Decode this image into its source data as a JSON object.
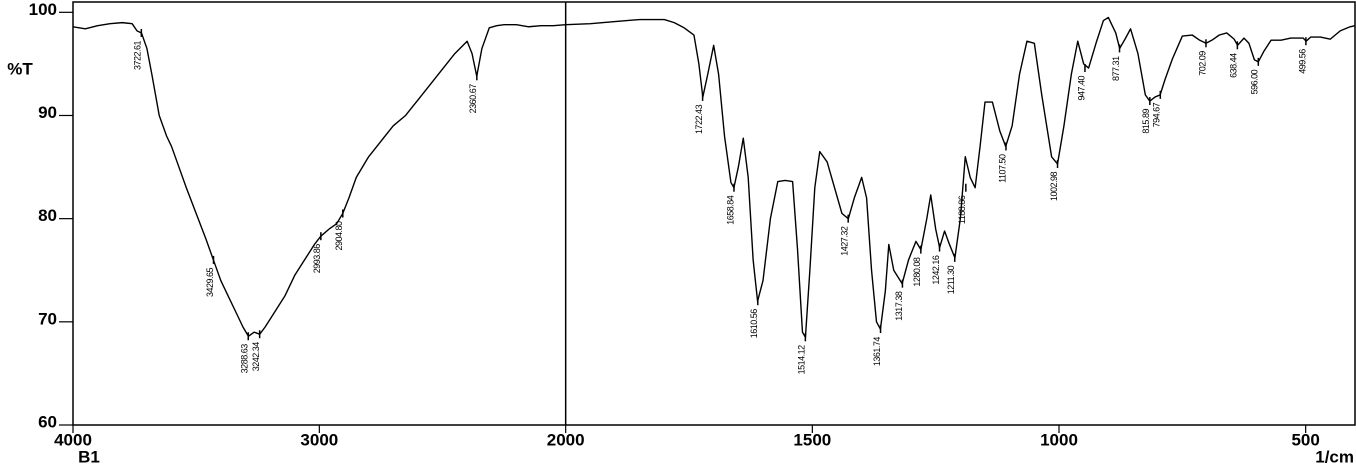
{
  "chart_data": {
    "type": "line",
    "ylabel": "%T",
    "xlabel": "1/cm",
    "sample_label": "B1",
    "color": "#000000",
    "xlim": [
      4000,
      400
    ],
    "x_scale_change": 2000,
    "ylim": [
      60,
      101
    ],
    "xticks": [
      4000,
      3000,
      2000,
      1500,
      1000,
      500
    ],
    "yticks": [
      60,
      70,
      80,
      90,
      100
    ],
    "x": [
      4000,
      3950,
      3900,
      3850,
      3800,
      3760,
      3740,
      3722,
      3700,
      3680,
      3650,
      3620,
      3600,
      3570,
      3540,
      3500,
      3460,
      3430,
      3400,
      3370,
      3340,
      3310,
      3288,
      3265,
      3242,
      3220,
      3180,
      3140,
      3100,
      3060,
      3020,
      2994,
      2960,
      2930,
      2905,
      2880,
      2850,
      2800,
      2750,
      2700,
      2650,
      2600,
      2550,
      2500,
      2450,
      2400,
      2380,
      2361,
      2340,
      2310,
      2280,
      2250,
      2200,
      2150,
      2100,
      2050,
      2000,
      1950,
      1900,
      1850,
      1800,
      1780,
      1760,
      1740,
      1730,
      1722,
      1712,
      1700,
      1690,
      1678,
      1665,
      1659,
      1650,
      1640,
      1630,
      1620,
      1611,
      1600,
      1585,
      1570,
      1555,
      1540,
      1530,
      1520,
      1514,
      1505,
      1495,
      1485,
      1470,
      1455,
      1440,
      1427,
      1415,
      1400,
      1390,
      1380,
      1370,
      1362,
      1352,
      1345,
      1335,
      1318,
      1305,
      1290,
      1280,
      1268,
      1260,
      1250,
      1242,
      1232,
      1222,
      1211,
      1200,
      1190,
      1180,
      1170,
      1160,
      1150,
      1135,
      1120,
      1108,
      1095,
      1080,
      1065,
      1050,
      1035,
      1015,
      1003,
      990,
      975,
      962,
      950,
      940,
      925,
      910,
      900,
      885,
      877,
      865,
      855,
      840,
      825,
      816,
      805,
      795,
      785,
      770,
      750,
      730,
      715,
      702,
      690,
      675,
      660,
      645,
      638,
      625,
      615,
      604,
      596,
      585,
      570,
      550,
      530,
      505,
      499,
      490,
      470,
      450,
      430,
      410,
      400
    ],
    "values": [
      98.6,
      98.4,
      98.7,
      98.9,
      99.0,
      98.9,
      98.2,
      98.0,
      96.5,
      94,
      90,
      88,
      87,
      85,
      83,
      80.5,
      78,
      76,
      74,
      72.5,
      71,
      69.5,
      68.6,
      69,
      68.8,
      69.5,
      71,
      72.5,
      74.5,
      76,
      77.5,
      78.3,
      79,
      79.5,
      80.5,
      82,
      84,
      86,
      87.5,
      89,
      90,
      91.5,
      93,
      94.5,
      96,
      97.2,
      96,
      93.8,
      96.5,
      98.5,
      98.7,
      98.8,
      98.8,
      98.6,
      98.7,
      98.7,
      98.8,
      98.9,
      99.1,
      99.3,
      99.3,
      99.0,
      98.5,
      97.8,
      95,
      91.8,
      94,
      96.8,
      94,
      88,
      83.5,
      83,
      85,
      87.8,
      84,
      76,
      72,
      74,
      80,
      83.6,
      83.7,
      83.6,
      77,
      69,
      68.5,
      75,
      83,
      86.5,
      85.5,
      83,
      80.5,
      80,
      82,
      84,
      82,
      75,
      70,
      69.3,
      73,
      77.5,
      75,
      73.7,
      76,
      77.8,
      77,
      80,
      82.3,
      79,
      77.2,
      78.8,
      77.5,
      76.2,
      80,
      86,
      84,
      83,
      87,
      91.3,
      91.3,
      88.5,
      87,
      89,
      94,
      97.2,
      97,
      92,
      86,
      85.3,
      89,
      94,
      97.2,
      95,
      94.6,
      97,
      99.2,
      99.5,
      98,
      96.5,
      97.5,
      98.4,
      96,
      92,
      91.4,
      91.8,
      92,
      93.5,
      95.5,
      97.7,
      97.8,
      97.3,
      97,
      97.3,
      97.8,
      98,
      97.4,
      96.8,
      97.5,
      97,
      95.4,
      95.2,
      96.2,
      97.3,
      97.3,
      97.5,
      97.5,
      97.2,
      97.6,
      97.6,
      97.4,
      98.2,
      98.6,
      98.7
    ],
    "peaks": [
      {
        "x": 3722.61,
        "y": 98.0,
        "label": "3722.61"
      },
      {
        "x": 3429.65,
        "y": 76.0,
        "label": "3429.65"
      },
      {
        "x": 3288.63,
        "y": 68.6,
        "label": "3288.63"
      },
      {
        "x": 3242.34,
        "y": 68.8,
        "label": "3242.34"
      },
      {
        "x": 2993.86,
        "y": 78.3,
        "label": "2993.86"
      },
      {
        "x": 2904.8,
        "y": 80.5,
        "label": "2904.80"
      },
      {
        "x": 2360.67,
        "y": 93.8,
        "label": "2360.67"
      },
      {
        "x": 1722.43,
        "y": 91.8,
        "label": "1722.43"
      },
      {
        "x": 1658.84,
        "y": 83.0,
        "label": "1658.84"
      },
      {
        "x": 1610.56,
        "y": 72.0,
        "label": "1610.56"
      },
      {
        "x": 1514.12,
        "y": 68.5,
        "label": "1514.12"
      },
      {
        "x": 1427.32,
        "y": 80.0,
        "label": "1427.32"
      },
      {
        "x": 1361.74,
        "y": 69.3,
        "label": "1361.74"
      },
      {
        "x": 1317.38,
        "y": 73.7,
        "label": "1317.38"
      },
      {
        "x": 1280.08,
        "y": 77.0,
        "label": "1280.08"
      },
      {
        "x": 1242.16,
        "y": 77.2,
        "label": "1242.16"
      },
      {
        "x": 1211.3,
        "y": 76.2,
        "label": "1211.30"
      },
      {
        "x": 1188.86,
        "y": 83.0,
        "label": "1188.86"
      },
      {
        "x": 1107.5,
        "y": 87.0,
        "label": "1107.50"
      },
      {
        "x": 1002.98,
        "y": 85.3,
        "label": "1002.98"
      },
      {
        "x": 947.4,
        "y": 94.6,
        "label": "947.40"
      },
      {
        "x": 877.31,
        "y": 96.5,
        "label": "877.31"
      },
      {
        "x": 815.89,
        "y": 91.4,
        "label": "815.89"
      },
      {
        "x": 794.67,
        "y": 92.0,
        "label": "794.67"
      },
      {
        "x": 702.09,
        "y": 97.0,
        "label": "702.09"
      },
      {
        "x": 638.44,
        "y": 96.8,
        "label": "638.44"
      },
      {
        "x": 596.0,
        "y": 95.2,
        "label": "596.00"
      },
      {
        "x": 499.56,
        "y": 97.2,
        "label": "499.56"
      }
    ]
  }
}
